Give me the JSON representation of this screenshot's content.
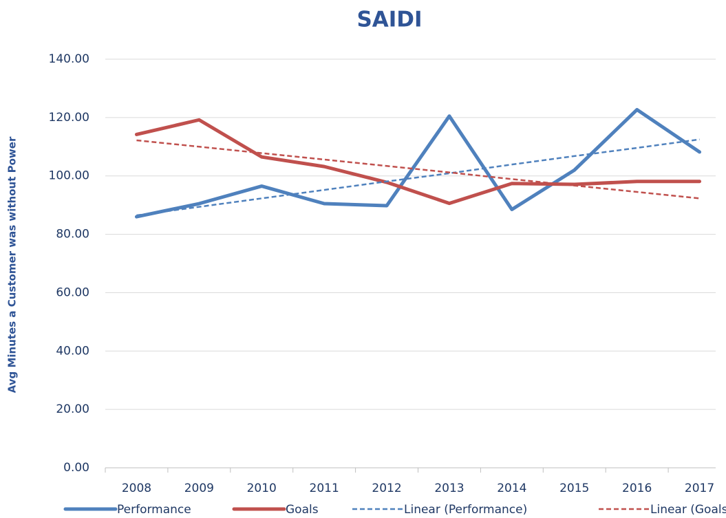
{
  "chart_data": {
    "type": "line",
    "title": "SAIDI",
    "y_label": "Avg Minutes a Customer was without Power",
    "categories": [
      "2008",
      "2009",
      "2010",
      "2011",
      "2012",
      "2013",
      "2014",
      "2015",
      "2016",
      "2017"
    ],
    "series": [
      {
        "name": "Performance",
        "color": "#4f81bd",
        "style": "solid",
        "values": [
          86.0,
          90.5,
          96.5,
          90.5,
          89.8,
          120.5,
          88.5,
          102.0,
          122.7,
          108.2
        ]
      },
      {
        "name": "Goals",
        "color": "#c0504d",
        "style": "solid",
        "values": [
          114.2,
          119.2,
          106.5,
          103.2,
          97.8,
          90.6,
          97.4,
          97.1,
          98.1,
          98.1
        ]
      },
      {
        "name": "Linear (Performance)",
        "color": "#4f81bd",
        "style": "dashed",
        "values": [
          86.5,
          89.4,
          92.3,
          95.2,
          98.1,
          100.9,
          103.9,
          106.8,
          109.6,
          112.5
        ]
      },
      {
        "name": "Linear (Goals)",
        "color": "#c0504d",
        "style": "dashed",
        "values": [
          112.2,
          110.0,
          107.8,
          105.6,
          103.4,
          101.2,
          98.9,
          96.7,
          94.5,
          92.3
        ]
      }
    ],
    "ylim": [
      0,
      140
    ],
    "yticks": [
      {
        "value": 0,
        "label": "0.00"
      },
      {
        "value": 20,
        "label": "20.00"
      },
      {
        "value": 40,
        "label": "40.00"
      },
      {
        "value": 60,
        "label": "60.00"
      },
      {
        "value": 80,
        "label": "80.00"
      },
      {
        "value": 100,
        "label": "100.00"
      },
      {
        "value": 120,
        "label": "120.00"
      },
      {
        "value": 140,
        "label": "140.00"
      }
    ],
    "grid": true,
    "legend": "bottom"
  }
}
